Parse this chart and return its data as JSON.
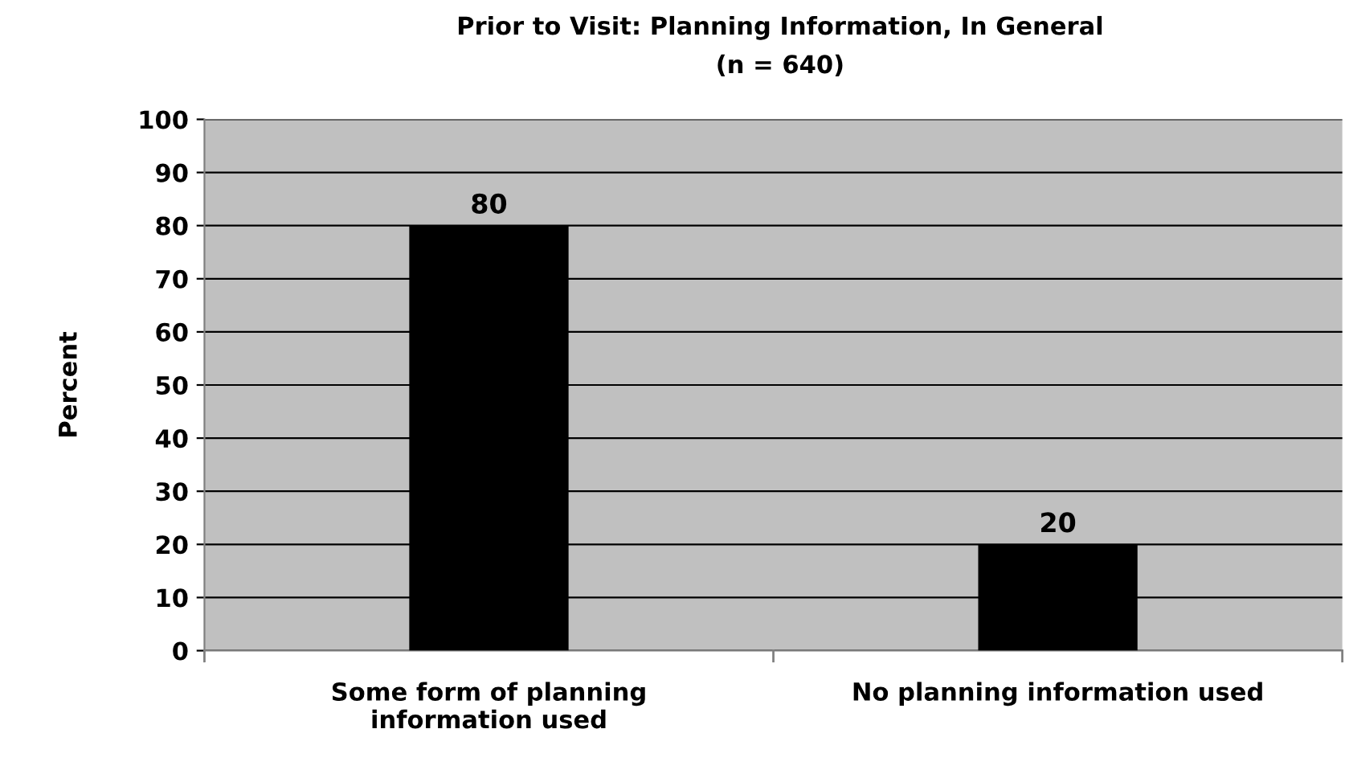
{
  "chart_data": {
    "type": "bar",
    "title": "Prior to Visit: Planning Information, In General",
    "subtitle": "(n = 640)",
    "ylabel": "Percent",
    "categories": [
      "Some form of planning\ninformation used",
      "No planning information used"
    ],
    "values": [
      80,
      20
    ],
    "color": "#000000",
    "ylim": [
      0,
      100
    ],
    "yticks": [
      0,
      10,
      20,
      30,
      40,
      50,
      60,
      70,
      80,
      90,
      100
    ],
    "grid": "y",
    "data_labels": true,
    "legend": false
  }
}
